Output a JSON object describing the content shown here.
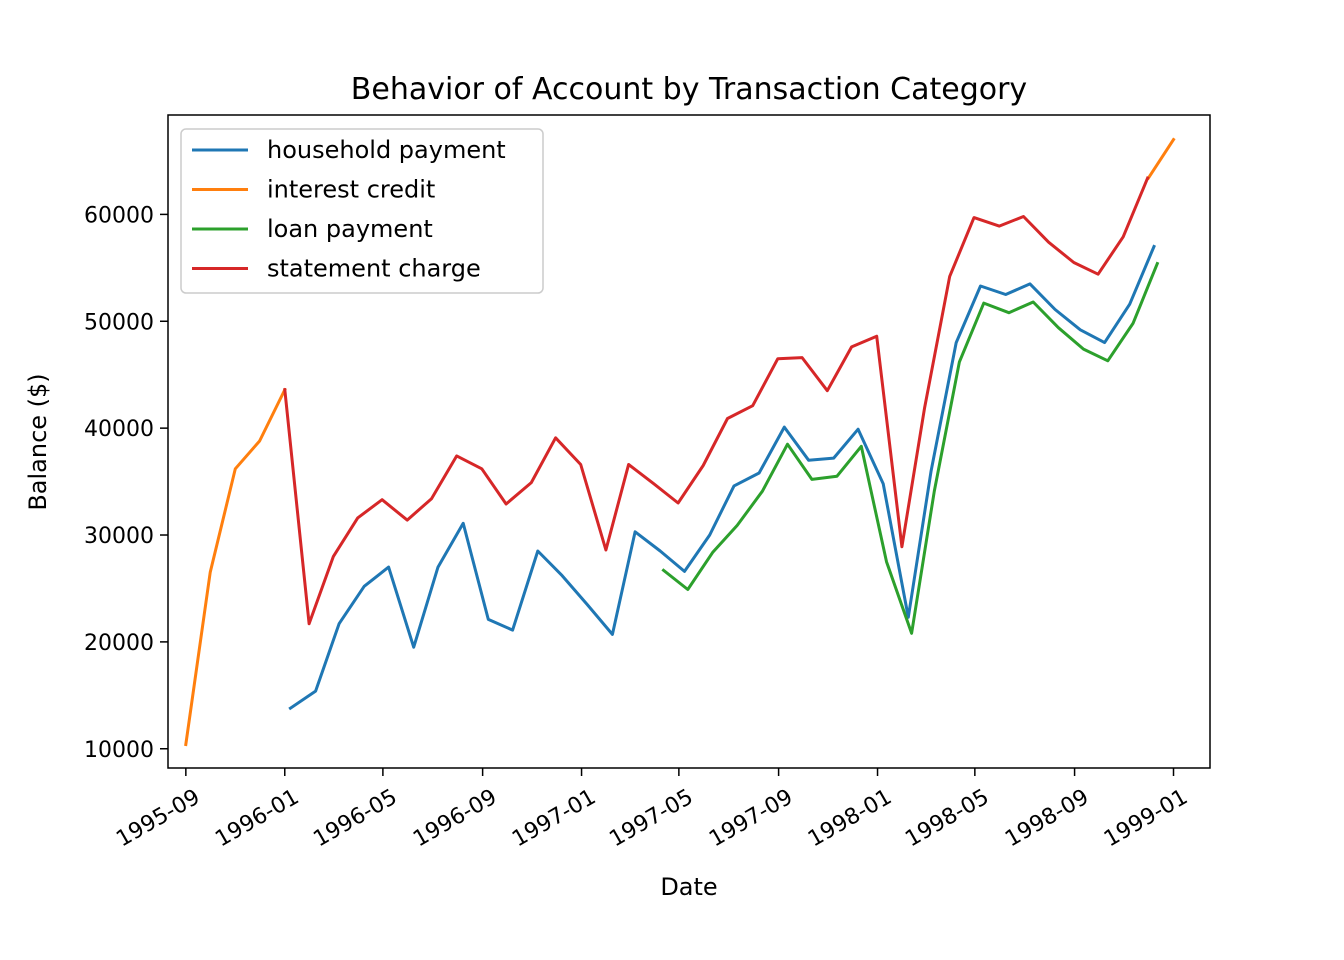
{
  "chart_data": {
    "type": "line",
    "title": "Behavior of Account by Transaction Category",
    "xlabel": "Date",
    "ylabel": "Balance ($)",
    "x_axis_type": "date",
    "xlim": [
      "1995-08-10",
      "1999-02-15"
    ],
    "ylim": [
      8200,
      69300
    ],
    "x_ticks": [
      "1995-09",
      "1996-01",
      "1996-05",
      "1996-09",
      "1997-01",
      "1997-05",
      "1997-09",
      "1998-01",
      "1998-05",
      "1998-09",
      "1999-01"
    ],
    "y_ticks": [
      10000,
      20000,
      30000,
      40000,
      50000,
      60000
    ],
    "grid": false,
    "legend_position": "top-left",
    "series": [
      {
        "name": "household payment",
        "color": "#1f77b4",
        "points": [
          [
            "1996-01-08",
            13800
          ],
          [
            "1996-02-08",
            15400
          ],
          [
            "1996-03-08",
            21700
          ],
          [
            "1996-04-08",
            25200
          ],
          [
            "1996-05-08",
            27000
          ],
          [
            "1996-06-08",
            19500
          ],
          [
            "1996-07-08",
            27000
          ],
          [
            "1996-08-08",
            31100
          ],
          [
            "1996-09-08",
            22100
          ],
          [
            "1996-10-08",
            21100
          ],
          [
            "1996-11-08",
            28500
          ],
          [
            "1996-12-08",
            26200
          ],
          [
            "1997-01-08",
            23500
          ],
          [
            "1997-02-08",
            20700
          ],
          [
            "1997-03-08",
            30300
          ],
          [
            "1997-04-08",
            28500
          ],
          [
            "1997-05-08",
            26600
          ],
          [
            "1997-06-08",
            30000
          ],
          [
            "1997-07-08",
            34600
          ],
          [
            "1997-08-08",
            35800
          ],
          [
            "1997-09-08",
            40100
          ],
          [
            "1997-10-08",
            37000
          ],
          [
            "1997-11-08",
            37200
          ],
          [
            "1997-12-08",
            39900
          ],
          [
            "1998-01-08",
            34800
          ],
          [
            "1998-02-08",
            22300
          ],
          [
            "1998-03-08",
            36000
          ],
          [
            "1998-04-08",
            48000
          ],
          [
            "1998-05-08",
            53300
          ],
          [
            "1998-06-08",
            52500
          ],
          [
            "1998-07-08",
            53500
          ],
          [
            "1998-08-08",
            51100
          ],
          [
            "1998-09-08",
            49200
          ],
          [
            "1998-10-08",
            48000
          ],
          [
            "1998-11-08",
            51600
          ],
          [
            "1998-12-08",
            57000
          ]
        ]
      },
      {
        "name": "interest credit",
        "color": "#ff7f0e",
        "points": [
          [
            "1995-09-01",
            10400
          ],
          [
            "1995-10-01",
            26500
          ],
          [
            "1995-11-01",
            36200
          ],
          [
            "1995-12-01",
            38800
          ],
          [
            "1996-01-01",
            43600
          ],
          [
            "1998-12-01",
            63400
          ],
          [
            "1999-01-01",
            67000
          ]
        ]
      },
      {
        "name": "loan payment",
        "color": "#2ca02c",
        "points": [
          [
            "1997-04-12",
            26700
          ],
          [
            "1997-05-12",
            24900
          ],
          [
            "1997-06-12",
            28400
          ],
          [
            "1997-07-12",
            30900
          ],
          [
            "1997-08-12",
            34100
          ],
          [
            "1997-09-12",
            38500
          ],
          [
            "1997-10-12",
            35200
          ],
          [
            "1997-11-12",
            35500
          ],
          [
            "1997-12-12",
            38300
          ],
          [
            "1998-01-12",
            27500
          ],
          [
            "1998-02-12",
            20800
          ],
          [
            "1998-03-12",
            34100
          ],
          [
            "1998-04-12",
            46200
          ],
          [
            "1998-05-12",
            51700
          ],
          [
            "1998-06-12",
            50800
          ],
          [
            "1998-07-12",
            51800
          ],
          [
            "1998-08-12",
            49400
          ],
          [
            "1998-09-12",
            47400
          ],
          [
            "1998-10-12",
            46300
          ],
          [
            "1998-11-12",
            49800
          ],
          [
            "1998-12-12",
            55400
          ]
        ]
      },
      {
        "name": "statement charge",
        "color": "#d62728",
        "points": [
          [
            "1996-01-01",
            43600
          ],
          [
            "1996-01-31",
            21700
          ],
          [
            "1996-03-01",
            28000
          ],
          [
            "1996-03-31",
            31600
          ],
          [
            "1996-04-30",
            33300
          ],
          [
            "1996-05-31",
            31400
          ],
          [
            "1996-06-30",
            33400
          ],
          [
            "1996-07-31",
            37400
          ],
          [
            "1996-08-31",
            36200
          ],
          [
            "1996-09-30",
            32900
          ],
          [
            "1996-10-31",
            34900
          ],
          [
            "1996-11-30",
            39100
          ],
          [
            "1996-12-31",
            36600
          ],
          [
            "1997-01-31",
            28600
          ],
          [
            "1997-02-28",
            36600
          ],
          [
            "1997-03-31",
            34800
          ],
          [
            "1997-04-30",
            33000
          ],
          [
            "1997-05-31",
            36500
          ],
          [
            "1997-06-30",
            40900
          ],
          [
            "1997-07-31",
            42100
          ],
          [
            "1997-08-31",
            46500
          ],
          [
            "1997-09-30",
            46600
          ],
          [
            "1997-10-31",
            43500
          ],
          [
            "1997-11-30",
            47600
          ],
          [
            "1997-12-31",
            48600
          ],
          [
            "1998-01-31",
            28900
          ],
          [
            "1998-02-28",
            41900
          ],
          [
            "1998-03-31",
            54200
          ],
          [
            "1998-04-30",
            59700
          ],
          [
            "1998-05-31",
            58900
          ],
          [
            "1998-06-30",
            59800
          ],
          [
            "1998-07-31",
            57400
          ],
          [
            "1998-08-31",
            55500
          ],
          [
            "1998-09-30",
            54400
          ],
          [
            "1998-10-31",
            57900
          ],
          [
            "1998-11-30",
            63400
          ]
        ]
      }
    ]
  }
}
